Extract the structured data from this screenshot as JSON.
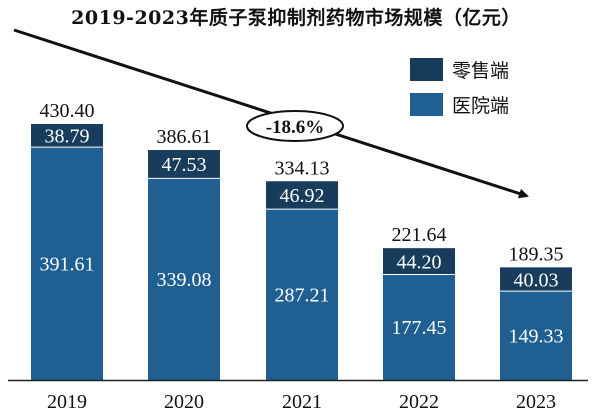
{
  "chart_data": {
    "type": "bar",
    "stacked": true,
    "title": "2019-2023年质子泵抑制剂药物市场规模（亿元）",
    "categories": [
      "2019",
      "2020",
      "2021",
      "2022",
      "2023"
    ],
    "series": [
      {
        "name": "医院端",
        "values": [
          391.61,
          339.08,
          287.21,
          177.45,
          149.33
        ],
        "color": "#1f5f92"
      },
      {
        "name": "零售端",
        "values": [
          38.79,
          47.53,
          46.92,
          44.2,
          40.03
        ],
        "color": "#173c5c"
      }
    ],
    "totals": [
      430.4,
      386.61,
      334.13,
      221.64,
      189.35
    ],
    "value_labels": {
      "hospital": [
        "391.61",
        "339.08",
        "287.21",
        "177.45",
        "149.33"
      ],
      "retail": [
        "38.79",
        "47.53",
        "46.92",
        "44.20",
        "40.03"
      ],
      "totals": [
        "430.40",
        "386.61",
        "334.13",
        "221.64",
        "189.35"
      ]
    },
    "annotation": "-18.6%",
    "ylim": [
      0,
      430.4
    ],
    "legend_position": "top-right",
    "grid": false
  }
}
